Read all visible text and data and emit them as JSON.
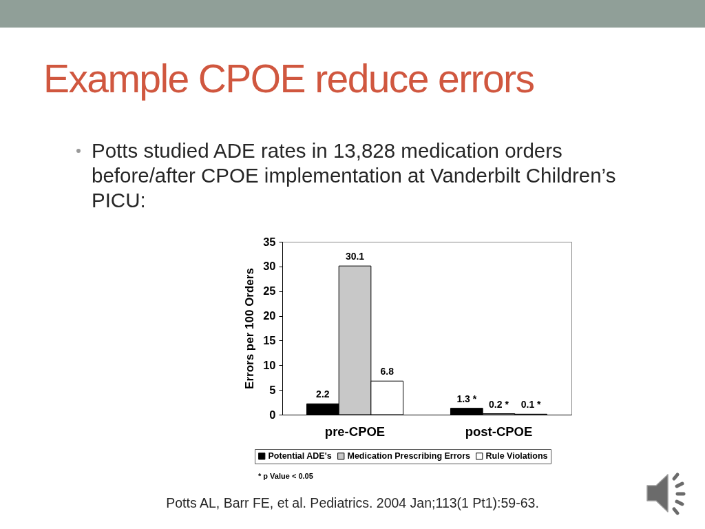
{
  "chart_data": {
    "type": "bar",
    "title": "Example CPOE reduce errors",
    "subtitle": "Potts studied ADE rates in 13,828 medication orders before/after CPOE implementation at Vanderbilt Children’s PICU:",
    "ylabel": "Errors per 100 Orders",
    "categories": [
      "pre-CPOE",
      "post-CPOE"
    ],
    "series": [
      {
        "name": "Potential ADE's",
        "color": "#000000",
        "values": [
          2.2,
          1.3
        ],
        "value_labels": [
          "2.2",
          "1.3 *"
        ]
      },
      {
        "name": "Medication Prescribing Errors",
        "color": "#c8c8c8",
        "values": [
          30.1,
          0.2
        ],
        "value_labels": [
          "30.1",
          "0.2 *"
        ]
      },
      {
        "name": "Rule Violations",
        "color": "#ffffff",
        "values": [
          6.8,
          0.1
        ],
        "value_labels": [
          "6.8",
          "0.1 *"
        ]
      }
    ],
    "ylim": [
      0,
      35
    ],
    "yticks": [
      0,
      5,
      10,
      15,
      20,
      25,
      30,
      35
    ],
    "legend": "bottom",
    "annotations": [
      "* p Value < 0.05",
      "Potts AL, Barr FE, et al. Pediatrics. 2004 Jan;113(1 Pt1):59-63."
    ]
  }
}
